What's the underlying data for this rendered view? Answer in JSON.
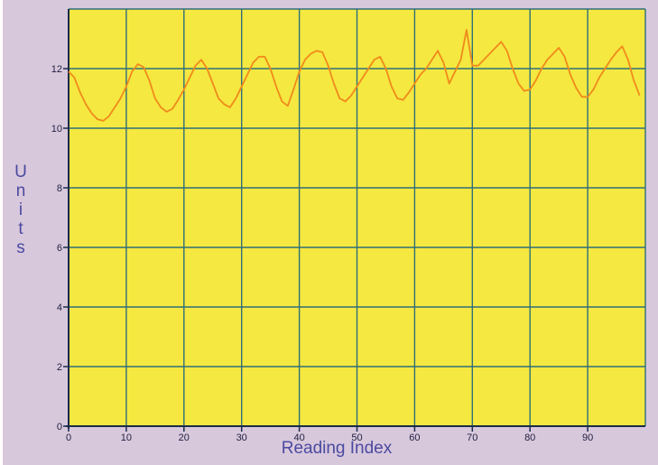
{
  "chart_data": {
    "type": "line",
    "title": "",
    "xlabel": "Reading Index",
    "ylabel": "Units",
    "xlim": [
      0,
      100
    ],
    "ylim": [
      0,
      14
    ],
    "x_ticks": [
      0,
      10,
      20,
      30,
      40,
      50,
      60,
      70,
      80,
      90
    ],
    "y_ticks": [
      0,
      2,
      4,
      6,
      8,
      10,
      12
    ],
    "grid": true,
    "legend": "none",
    "colors": {
      "frame": "#d8c8dc",
      "plot_background": "#f5e840",
      "grid": "#2f6f7a",
      "line": "#f08a1c",
      "axis_title": "#4a4aa0"
    },
    "series": [
      {
        "x": [
          0,
          1,
          2,
          3,
          4,
          5,
          6,
          7,
          8,
          9,
          10,
          11,
          12,
          13,
          14,
          15,
          16,
          17,
          18,
          19,
          20,
          21,
          22,
          23,
          24,
          25,
          26,
          27,
          28,
          29,
          30,
          31,
          32,
          33,
          34,
          35,
          36,
          37,
          38,
          39,
          40,
          41,
          42,
          43,
          44,
          45,
          46,
          47,
          48,
          49,
          50,
          51,
          52,
          53,
          54,
          55,
          56,
          57,
          58,
          59,
          60,
          61,
          62,
          63,
          64,
          65,
          66,
          67,
          68,
          69,
          70,
          71,
          72,
          73,
          74,
          75,
          76,
          77,
          78,
          79,
          80,
          81,
          82,
          83,
          84,
          85,
          86,
          87,
          88,
          89,
          90,
          91,
          92,
          93,
          94,
          95,
          96,
          97,
          98,
          99
        ],
        "y": [
          11.9,
          11.7,
          11.2,
          10.8,
          10.5,
          10.3,
          10.25,
          10.4,
          10.7,
          11.0,
          11.4,
          11.9,
          12.15,
          12.05,
          11.6,
          11.0,
          10.7,
          10.55,
          10.65,
          10.95,
          11.3,
          11.7,
          12.1,
          12.3,
          12.0,
          11.5,
          11.0,
          10.8,
          10.7,
          11.0,
          11.4,
          11.8,
          12.2,
          12.4,
          12.4,
          12.0,
          11.4,
          10.9,
          10.75,
          11.3,
          11.9,
          12.3,
          12.5,
          12.6,
          12.55,
          12.1,
          11.5,
          11.0,
          10.9,
          11.1,
          11.4,
          11.7,
          12.0,
          12.3,
          12.4,
          12.0,
          11.4,
          11.0,
          10.95,
          11.2,
          11.5,
          11.8,
          12.0,
          12.3,
          12.6,
          12.2,
          11.5,
          11.9,
          12.3,
          13.3,
          12.1,
          12.1,
          12.3,
          12.5,
          12.7,
          12.9,
          12.6,
          12.0,
          11.5,
          11.25,
          11.3,
          11.6,
          12.0,
          12.3,
          12.5,
          12.7,
          12.4,
          11.8,
          11.35,
          11.05,
          11.05,
          11.3,
          11.7,
          12.0,
          12.3,
          12.55,
          12.75,
          12.3,
          11.6,
          11.1
        ]
      }
    ]
  }
}
